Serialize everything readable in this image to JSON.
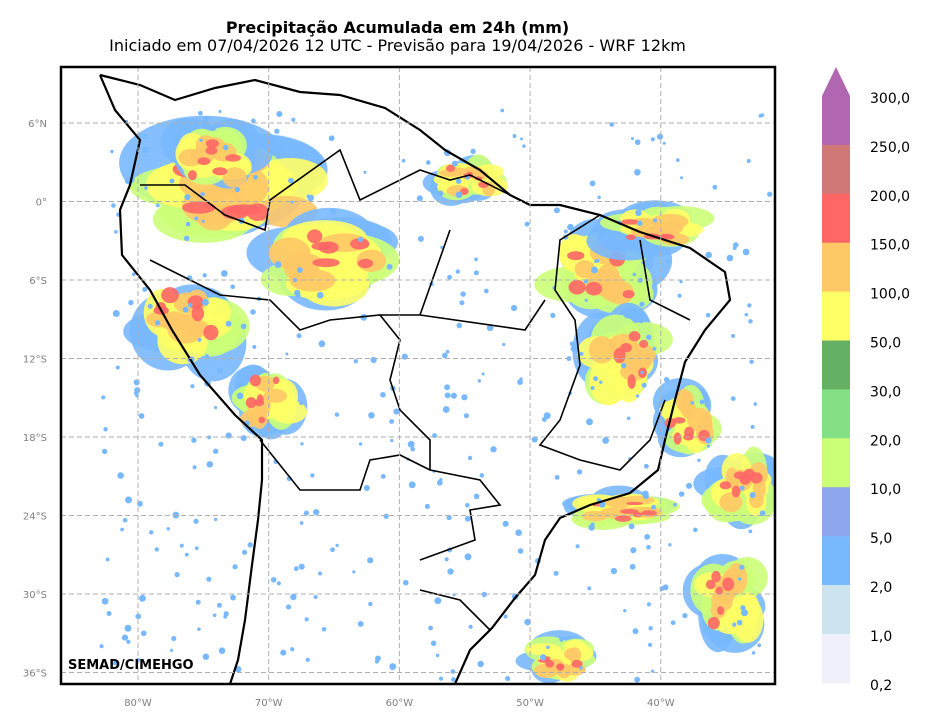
{
  "title": "Precipitação Acumulada em 24h (mm)",
  "subtitle": "Iniciado em 07/04/2026 12 UTC - Previsão para 19/04/2026 - WRF 12km",
  "credit": "SEMAD/CIMEHGO",
  "lat_ticks": [
    "6°N",
    "0°",
    "6°S",
    "12°S",
    "18°S",
    "24°S",
    "30°S",
    "36°S"
  ],
  "lon_ticks": [
    "80°W",
    "70°W",
    "60°W",
    "50°W",
    "40°W"
  ],
  "colorbar": {
    "labels": [
      "300,0",
      "250,0",
      "200,0",
      "150,0",
      "100,0",
      "50,0",
      "30,0",
      "20,0",
      "10,0",
      "5,0",
      "2,0",
      "1,0",
      "0,2"
    ],
    "colors": [
      "#b066b0",
      "#d07878",
      "#ff6666",
      "#ffc866",
      "#ffff66",
      "#66b066",
      "#84e084",
      "#ccff78",
      "#8ea6ee",
      "#78b8ff",
      "#cce4ee",
      "#f0f0fa"
    ],
    "extend_color": "#b066b0"
  }
}
